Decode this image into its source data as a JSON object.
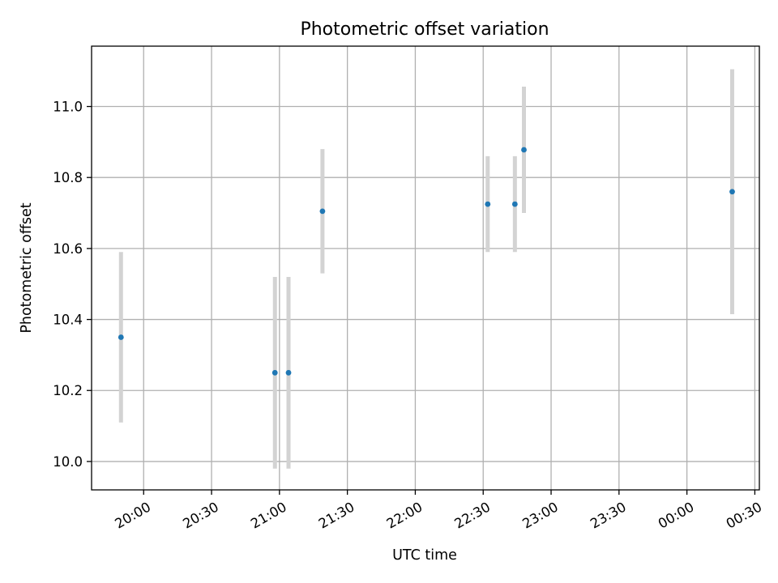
{
  "chart_data": {
    "type": "scatter",
    "title": "Photometric offset variation",
    "xlabel": "UTC time",
    "ylabel": "Photometric offset",
    "x_ticks": [
      "20:00",
      "20:30",
      "21:00",
      "21:30",
      "22:00",
      "22:30",
      "23:00",
      "23:30",
      "00:00",
      "00:30"
    ],
    "y_ticks": [
      "10.0",
      "10.2",
      "10.4",
      "10.6",
      "10.8",
      "11.0"
    ],
    "xlim": [
      "19:37",
      "00:32"
    ],
    "ylim": [
      9.92,
      11.17
    ],
    "grid": true,
    "point_color": "#1f77b4",
    "errorbar_color": "#d3d3d3",
    "points": [
      {
        "x": "19:50",
        "y": 10.35,
        "err": 0.24
      },
      {
        "x": "20:58",
        "y": 10.25,
        "err": 0.27
      },
      {
        "x": "21:04",
        "y": 10.25,
        "err": 0.27
      },
      {
        "x": "21:19",
        "y": 10.705,
        "err": 0.175
      },
      {
        "x": "22:32",
        "y": 10.725,
        "err": 0.135
      },
      {
        "x": "22:44",
        "y": 10.725,
        "err": 0.135
      },
      {
        "x": "22:48",
        "y": 10.878,
        "err": 0.178
      },
      {
        "x": "00:20",
        "y": 10.76,
        "err": 0.345
      }
    ]
  }
}
